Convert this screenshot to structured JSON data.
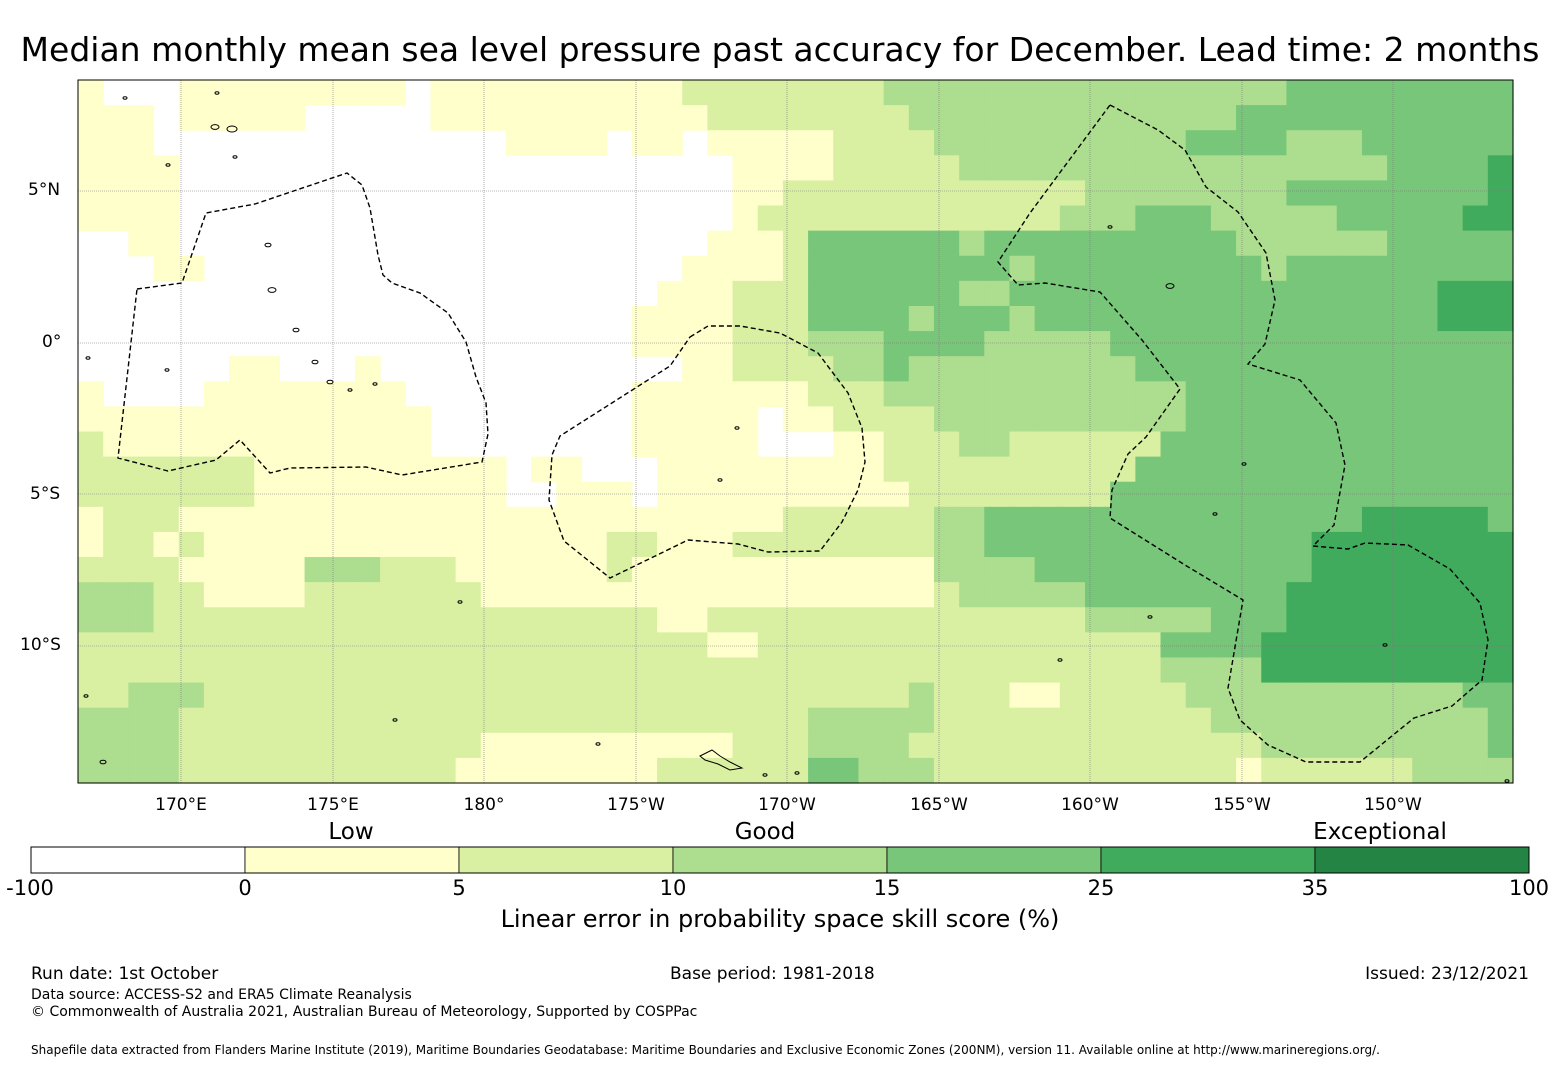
{
  "title": "Median monthly mean sea level pressure past accuracy for December. Lead time: 2 months",
  "map": {
    "lat_labels": [
      "5°N",
      "0°",
      "5°S",
      "10°S"
    ],
    "lon_labels": [
      "170°E",
      "175°E",
      "180°",
      "175°W",
      "170°W",
      "165°W",
      "160°W",
      "155°W",
      "150°W"
    ],
    "extent": {
      "lon_min": 166.6,
      "lon_max": 214.0,
      "lat_min": -14.7,
      "lat_max": 8.5
    }
  },
  "colorbar": {
    "category_labels": [
      "Low",
      "Good",
      "Exceptional"
    ],
    "ticks": [
      "-100",
      "0",
      "5",
      "10",
      "15",
      "25",
      "35",
      "100"
    ],
    "colors": [
      "#ffffff",
      "#ffffcc",
      "#d9f0a3",
      "#addd8e",
      "#78c679",
      "#41ab5d",
      "#238443"
    ],
    "label": "Linear error in probability space skill score (%)"
  },
  "footer": {
    "run_date": "Run date: 1st October",
    "base_period": "Base period: 1981-2018",
    "issued": "Issued: 23/12/2021",
    "data_source": "Data source: ACCESS-S2 and ERA5 Climate Reanalysis",
    "copyright": "© Commonwealth of Australia 2021, Australian Bureau of Meteorology, Supported by COSPPac",
    "shapefile": "Shapefile data extracted from Flanders Marine Institute (2019), Maritime Boundaries Geodatabase: Maritime Boundaries and Exclusive Economic Zones (200NM), version 11. Available online at http://www.marineregions.org/."
  }
}
